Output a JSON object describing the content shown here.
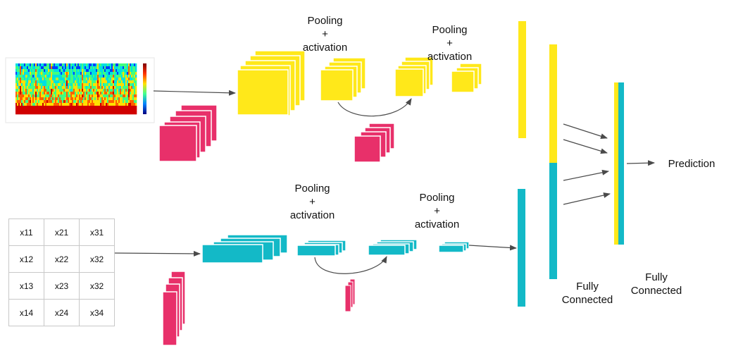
{
  "colors": {
    "yellow": "#FFE81A",
    "cyan": "#13B9C7",
    "pink": "#E8306A",
    "arrow": "#4A4A4A",
    "grid": "#C8C8C8"
  },
  "labels": {
    "pool_top_1": [
      "Pooling",
      "+",
      "activation"
    ],
    "pool_top_2": [
      "Pooling",
      "+",
      "activation"
    ],
    "pool_bottom_1": [
      "Pooling",
      "+",
      "activation"
    ],
    "pool_bottom_2": [
      "Pooling",
      "+",
      "activation"
    ],
    "fc_1": [
      "Fully",
      "Connected"
    ],
    "fc_2": [
      "Fully",
      "Connected"
    ],
    "prediction": "Prediction"
  },
  "matrix": {
    "rows": [
      [
        "x11",
        "x21",
        "x31"
      ],
      [
        "x12",
        "x22",
        "x32"
      ],
      [
        "x13",
        "x23",
        "x32"
      ],
      [
        "x14",
        "x24",
        "x34"
      ]
    ]
  },
  "spectrogram": {
    "icon": "spectrogram-image",
    "colormap": [
      "#00007F",
      "#0040FF",
      "#00E0E0",
      "#40FF80",
      "#FFE000",
      "#FF6000",
      "#D00000"
    ]
  }
}
